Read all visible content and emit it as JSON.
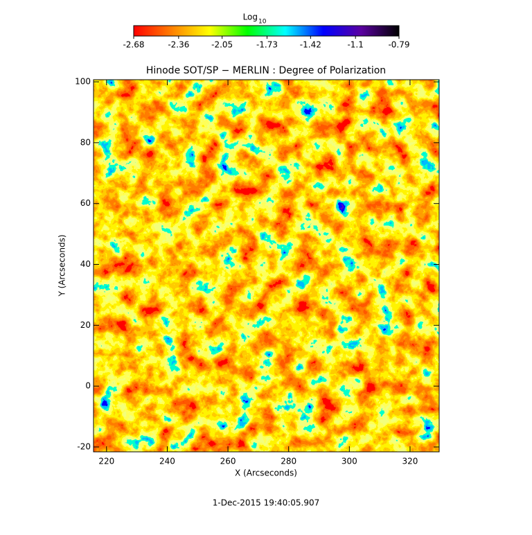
{
  "chart_data": {
    "type": "heatmap",
    "title": "Hinode SOT/SP − MERLIN : Degree of Polarization",
    "xlabel": "X (Arcseconds)",
    "ylabel": "Y (Arcseconds)",
    "xlim": [
      215.7,
      329.6
    ],
    "ylim": [
      -21.6,
      100.7
    ],
    "xticks": [
      220,
      240,
      260,
      280,
      300,
      320
    ],
    "yticks": [
      -20,
      0,
      20,
      40,
      60,
      80,
      100
    ],
    "colorbar": {
      "label": "Log",
      "label_subscript": "10",
      "clim": [
        -2.68,
        -0.79
      ],
      "ticks": [
        -2.68,
        -2.36,
        -2.05,
        -1.73,
        -1.42,
        -1.1,
        -0.79
      ],
      "colors": [
        "#ff0000",
        "#ff7f00",
        "#ffff00",
        "#00ff00",
        "#00ffff",
        "#0000ff",
        "#5a00a0",
        "#000000"
      ]
    },
    "footer": "1-Dec-2015 19:40:05.907"
  }
}
